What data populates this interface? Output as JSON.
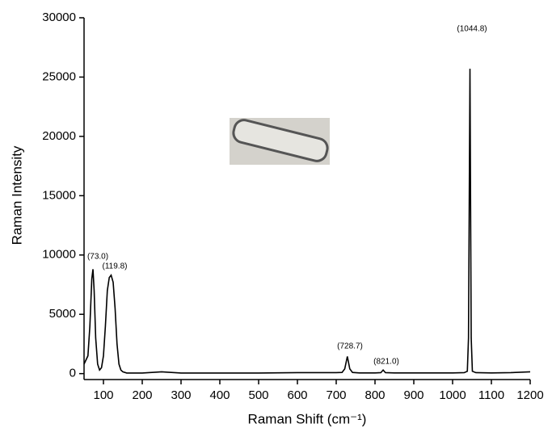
{
  "chart_data": {
    "type": "line",
    "xlabel": "Raman Shift (cm⁻¹)",
    "ylabel": "Raman Intensity",
    "xlim": [
      50,
      1200
    ],
    "ylim": [
      -500,
      30000
    ],
    "xticks": [
      100,
      200,
      300,
      400,
      500,
      600,
      700,
      800,
      900,
      1000,
      1100,
      1200
    ],
    "yticks": [
      0,
      5000,
      10000,
      15000,
      20000,
      25000,
      30000
    ],
    "annotations": [
      "(73.0)",
      "(119.8)",
      "(728.7)",
      "(821.0)",
      "(1044.8)"
    ],
    "series": [
      {
        "color": "#000000",
        "x": [
          50,
          60,
          65,
          70,
          73,
          76,
          80,
          85,
          90,
          95,
          100,
          105,
          110,
          115,
          119.8,
          125,
          130,
          135,
          140,
          145,
          150,
          160,
          200,
          250,
          300,
          400,
          500,
          600,
          700,
          715,
          722,
          728.7,
          735,
          742,
          760,
          800,
          815,
          821,
          827,
          850,
          900,
          1000,
          1030,
          1038,
          1041,
          1044.8,
          1048,
          1051,
          1060,
          1100,
          1150,
          1200
        ],
        "values": [
          800,
          1500,
          4000,
          8000,
          8800,
          7000,
          3000,
          800,
          300,
          500,
          1500,
          4000,
          7000,
          8100,
          8300,
          7700,
          5500,
          2500,
          800,
          300,
          150,
          50,
          50,
          150,
          50,
          50,
          50,
          80,
          80,
          100,
          400,
          1450,
          400,
          100,
          60,
          60,
          80,
          300,
          80,
          60,
          60,
          60,
          80,
          200,
          3000,
          25700,
          3000,
          200,
          80,
          60,
          80,
          150
        ]
      }
    ]
  }
}
